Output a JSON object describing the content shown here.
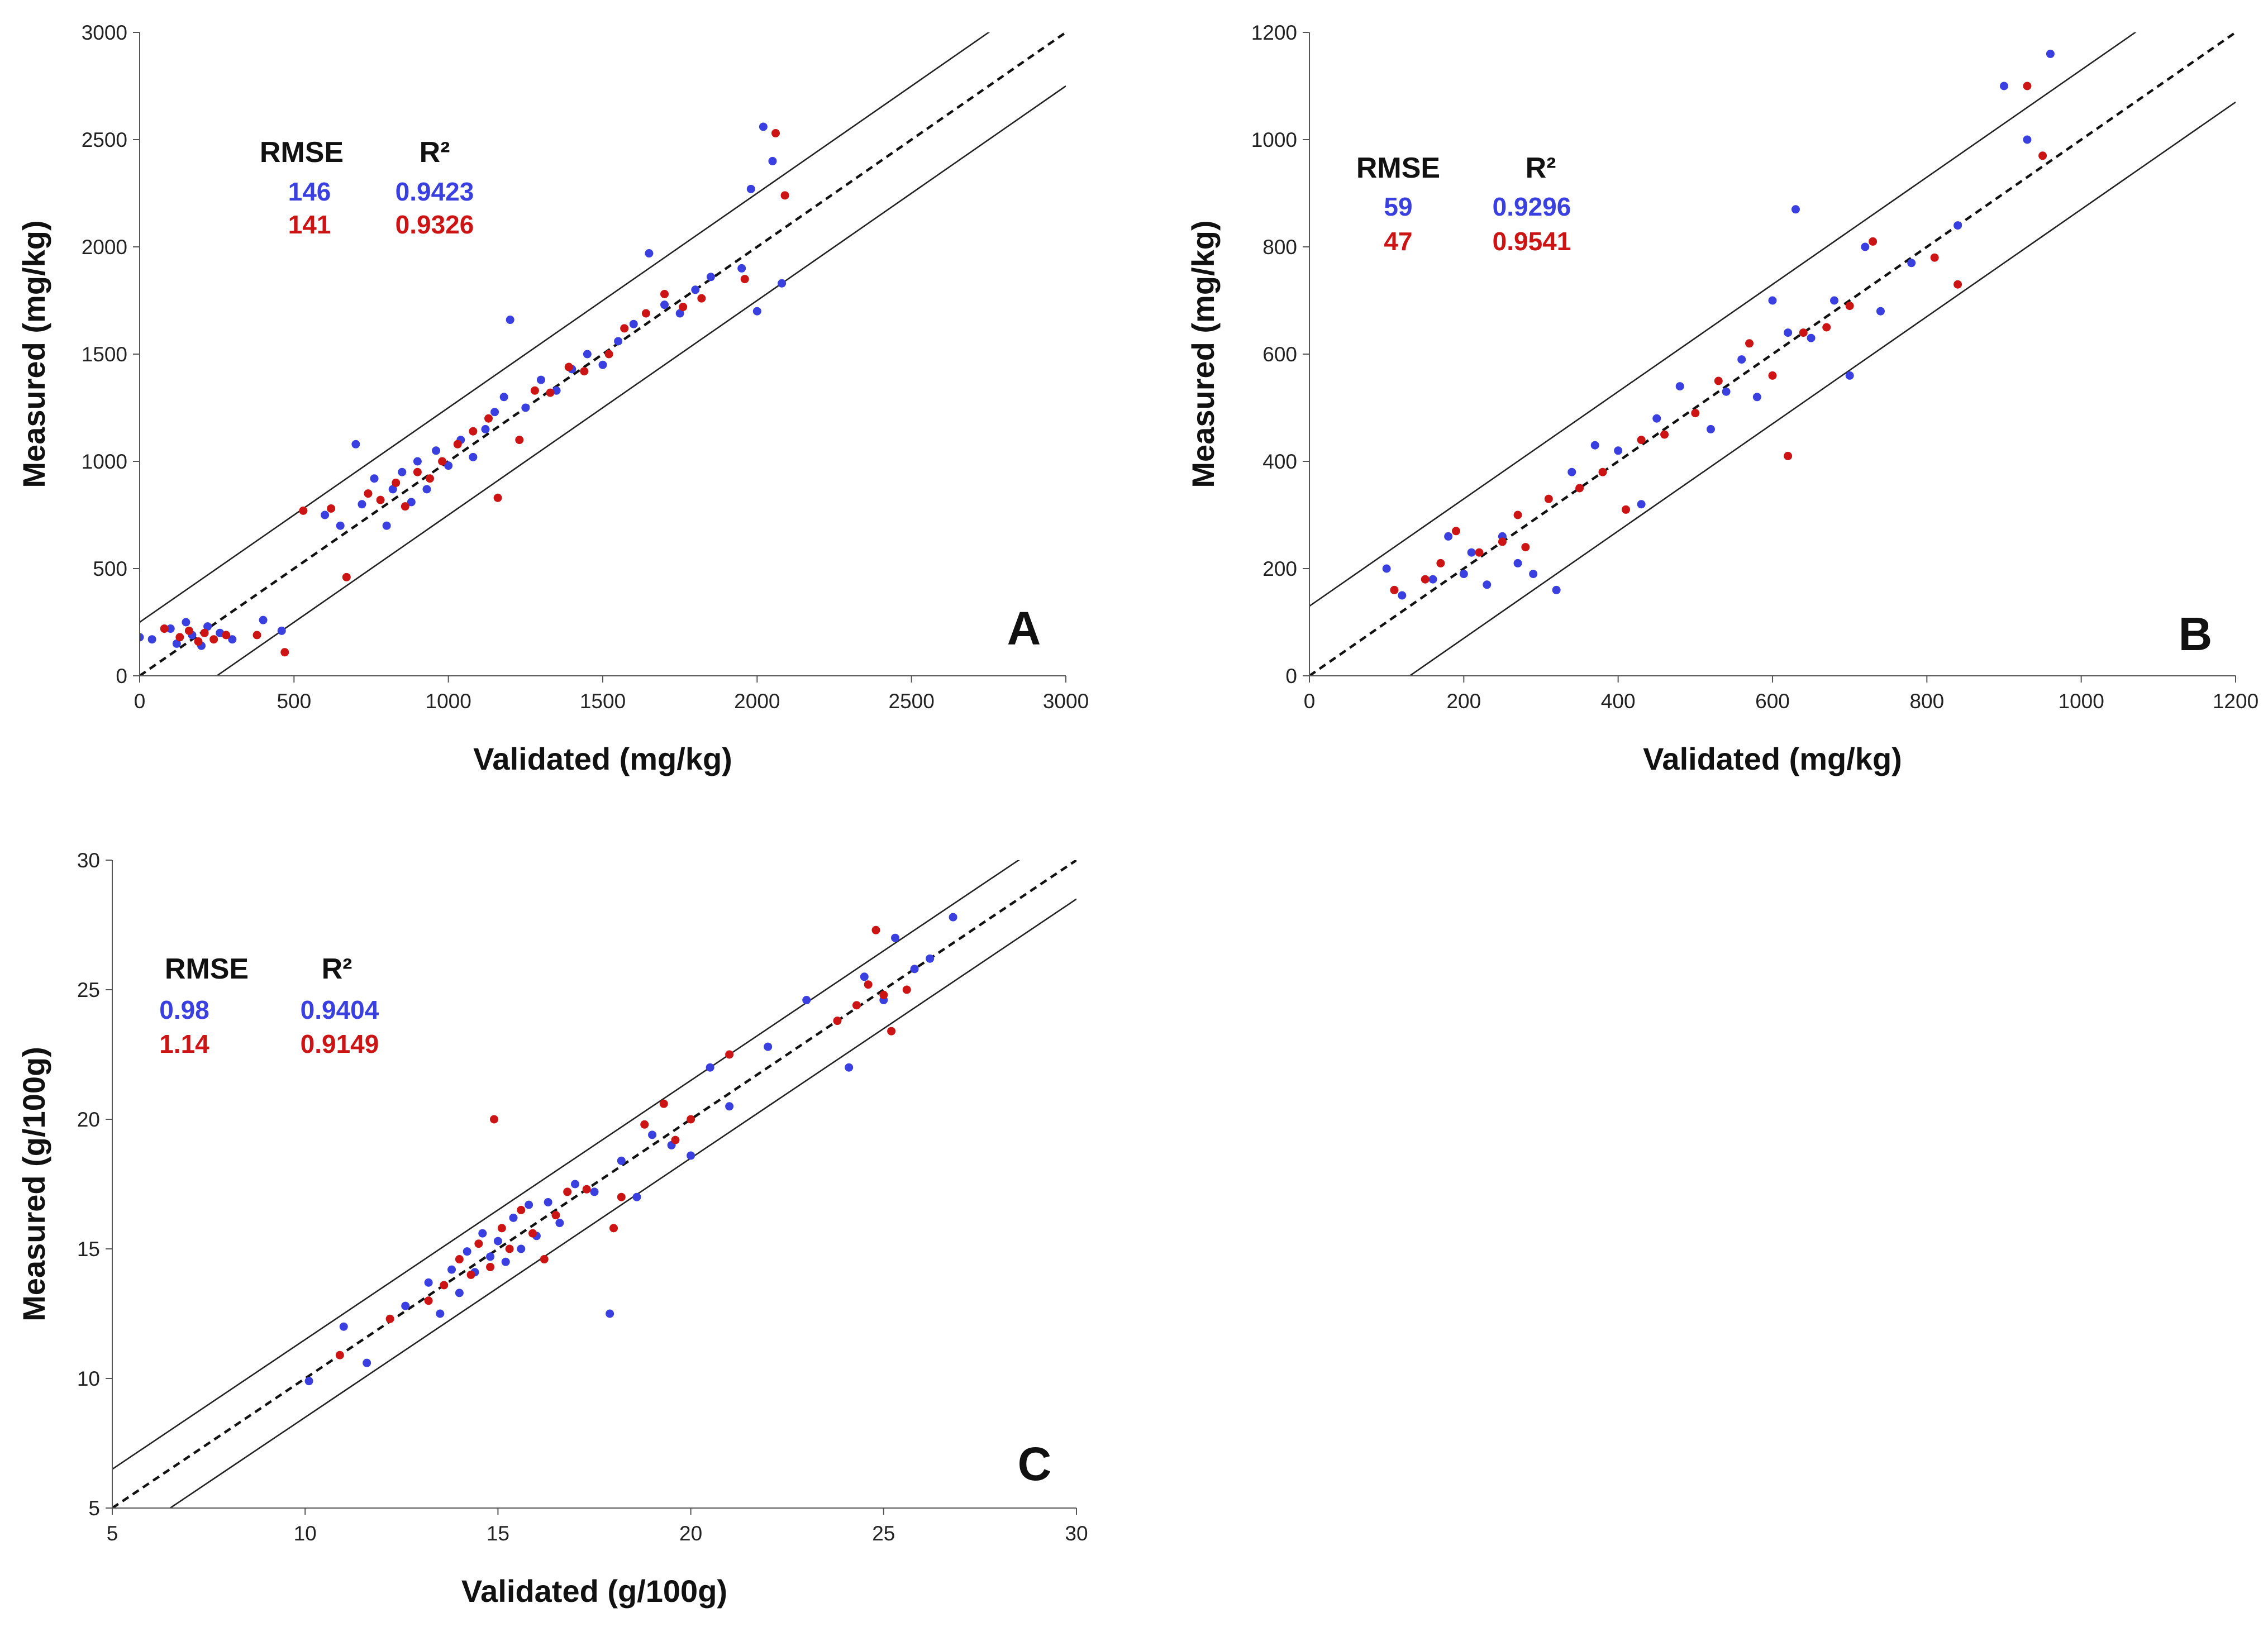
{
  "colors": {
    "blue": "#3a3fe0",
    "red": "#cc1414",
    "axis": "#555555",
    "line": "#222222"
  },
  "chart_data": [
    {
      "panel": "A",
      "type": "scatter",
      "xlabel": "Validated (mg/kg)",
      "ylabel": "Measured (mg/kg)",
      "xlim": [
        0,
        3000
      ],
      "ylim": [
        0,
        3000
      ],
      "xticks": [
        0,
        500,
        1000,
        1500,
        2000,
        2500,
        3000
      ],
      "yticks": [
        0,
        500,
        1000,
        1500,
        2000,
        2500,
        3000
      ],
      "xtick_labels": [
        "0",
        "500",
        "1000",
        "1500",
        "2000",
        "2500",
        "3000"
      ],
      "ytick_labels": [
        "0",
        "500",
        "1000",
        "1500",
        "2000",
        "2500",
        "3000"
      ],
      "identity_line": true,
      "band_offset": 250,
      "stats_header": {
        "rmse": "RMSE",
        "r2": "R²"
      },
      "series": [
        {
          "name": "blue",
          "color": "blue",
          "rmse": "146",
          "r2": "0.9423",
          "points": [
            [
              0,
              180
            ],
            [
              40,
              170
            ],
            [
              100,
              220
            ],
            [
              120,
              150
            ],
            [
              150,
              250
            ],
            [
              170,
              190
            ],
            [
              200,
              140
            ],
            [
              220,
              230
            ],
            [
              260,
              200
            ],
            [
              300,
              170
            ],
            [
              400,
              260
            ],
            [
              460,
              210
            ],
            [
              600,
              750
            ],
            [
              650,
              700
            ],
            [
              700,
              1080
            ],
            [
              720,
              800
            ],
            [
              760,
              920
            ],
            [
              800,
              700
            ],
            [
              820,
              870
            ],
            [
              850,
              950
            ],
            [
              880,
              810
            ],
            [
              900,
              1000
            ],
            [
              930,
              870
            ],
            [
              960,
              1050
            ],
            [
              1000,
              980
            ],
            [
              1040,
              1100
            ],
            [
              1080,
              1020
            ],
            [
              1120,
              1150
            ],
            [
              1150,
              1230
            ],
            [
              1180,
              1300
            ],
            [
              1200,
              1660
            ],
            [
              1250,
              1250
            ],
            [
              1300,
              1380
            ],
            [
              1350,
              1330
            ],
            [
              1400,
              1430
            ],
            [
              1450,
              1500
            ],
            [
              1500,
              1450
            ],
            [
              1550,
              1560
            ],
            [
              1600,
              1640
            ],
            [
              1650,
              1970
            ],
            [
              1700,
              1730
            ],
            [
              1750,
              1690
            ],
            [
              1800,
              1800
            ],
            [
              1850,
              1860
            ],
            [
              1950,
              1900
            ],
            [
              1980,
              2270
            ],
            [
              2000,
              1700
            ],
            [
              2020,
              2560
            ],
            [
              2050,
              2400
            ],
            [
              2080,
              1830
            ]
          ]
        },
        {
          "name": "red",
          "color": "red",
          "rmse": "141",
          "r2": "0.9326",
          "points": [
            [
              80,
              220
            ],
            [
              130,
              180
            ],
            [
              160,
              210
            ],
            [
              190,
              160
            ],
            [
              210,
              200
            ],
            [
              240,
              170
            ],
            [
              280,
              190
            ],
            [
              380,
              190
            ],
            [
              470,
              110
            ],
            [
              530,
              770
            ],
            [
              620,
              780
            ],
            [
              670,
              460
            ],
            [
              740,
              850
            ],
            [
              780,
              820
            ],
            [
              830,
              900
            ],
            [
              860,
              790
            ],
            [
              900,
              950
            ],
            [
              940,
              920
            ],
            [
              980,
              1000
            ],
            [
              1030,
              1080
            ],
            [
              1080,
              1140
            ],
            [
              1130,
              1200
            ],
            [
              1160,
              830
            ],
            [
              1230,
              1100
            ],
            [
              1280,
              1330
            ],
            [
              1330,
              1320
            ],
            [
              1390,
              1440
            ],
            [
              1440,
              1420
            ],
            [
              1520,
              1500
            ],
            [
              1570,
              1620
            ],
            [
              1640,
              1690
            ],
            [
              1700,
              1780
            ],
            [
              1760,
              1720
            ],
            [
              1820,
              1760
            ],
            [
              1960,
              1850
            ],
            [
              2060,
              2530
            ],
            [
              2090,
              2240
            ]
          ]
        }
      ],
      "panel_label": "A"
    },
    {
      "panel": "B",
      "type": "scatter",
      "xlabel": "Validated (mg/kg)",
      "ylabel": "Measured (mg/kg)",
      "xlim": [
        0,
        1200
      ],
      "ylim": [
        0,
        1200
      ],
      "xticks": [
        0,
        200,
        400,
        600,
        800,
        1000,
        1200
      ],
      "yticks": [
        0,
        200,
        400,
        600,
        800,
        1000,
        1200
      ],
      "xtick_labels": [
        "0",
        "200",
        "400",
        "600",
        "800",
        "1000",
        "1200"
      ],
      "ytick_labels": [
        "0",
        "200",
        "400",
        "600",
        "800",
        "1000",
        "1200"
      ],
      "identity_line": true,
      "band_offset": 130,
      "stats_header": {
        "rmse": "RMSE",
        "r2": "R²"
      },
      "series": [
        {
          "name": "blue",
          "color": "blue",
          "rmse": "59",
          "r2": "0.9296",
          "points": [
            [
              100,
              200
            ],
            [
              120,
              150
            ],
            [
              160,
              180
            ],
            [
              180,
              260
            ],
            [
              200,
              190
            ],
            [
              210,
              230
            ],
            [
              230,
              170
            ],
            [
              250,
              260
            ],
            [
              270,
              210
            ],
            [
              290,
              190
            ],
            [
              320,
              160
            ],
            [
              340,
              380
            ],
            [
              370,
              430
            ],
            [
              400,
              420
            ],
            [
              430,
              320
            ],
            [
              450,
              480
            ],
            [
              480,
              540
            ],
            [
              520,
              460
            ],
            [
              540,
              530
            ],
            [
              560,
              590
            ],
            [
              580,
              520
            ],
            [
              600,
              700
            ],
            [
              620,
              640
            ],
            [
              630,
              870
            ],
            [
              650,
              630
            ],
            [
              680,
              700
            ],
            [
              700,
              560
            ],
            [
              720,
              800
            ],
            [
              740,
              680
            ],
            [
              780,
              770
            ],
            [
              840,
              840
            ],
            [
              900,
              1100
            ],
            [
              930,
              1000
            ],
            [
              960,
              1160
            ]
          ]
        },
        {
          "name": "red",
          "color": "red",
          "rmse": "47",
          "r2": "0.9541",
          "points": [
            [
              110,
              160
            ],
            [
              150,
              180
            ],
            [
              170,
              210
            ],
            [
              190,
              270
            ],
            [
              220,
              230
            ],
            [
              250,
              250
            ],
            [
              270,
              300
            ],
            [
              280,
              240
            ],
            [
              310,
              330
            ],
            [
              350,
              350
            ],
            [
              380,
              380
            ],
            [
              410,
              310
            ],
            [
              430,
              440
            ],
            [
              460,
              450
            ],
            [
              500,
              490
            ],
            [
              530,
              550
            ],
            [
              570,
              620
            ],
            [
              600,
              560
            ],
            [
              620,
              410
            ],
            [
              640,
              640
            ],
            [
              670,
              650
            ],
            [
              700,
              690
            ],
            [
              730,
              810
            ],
            [
              810,
              780
            ],
            [
              840,
              730
            ],
            [
              930,
              1100
            ],
            [
              950,
              970
            ]
          ]
        }
      ],
      "panel_label": "B"
    },
    {
      "panel": "C",
      "type": "scatter",
      "xlabel": "Validated (g/100g)",
      "ylabel": "Measured (g/100g)",
      "xlim": [
        5,
        30
      ],
      "ylim": [
        5,
        30
      ],
      "xticks": [
        5,
        10,
        15,
        20,
        25,
        30
      ],
      "yticks": [
        5,
        10,
        15,
        20,
        25,
        30
      ],
      "xtick_labels": [
        "5",
        "10",
        "15",
        "20",
        "25",
        "30"
      ],
      "ytick_labels": [
        "5",
        "10",
        "15",
        "20",
        "25",
        "30"
      ],
      "identity_line": true,
      "band_offset": 1.5,
      "stats_header": {
        "rmse": "RMSE",
        "r2": "R²"
      },
      "series": [
        {
          "name": "blue",
          "color": "blue",
          "rmse": "0.98",
          "r2": "0.9404",
          "points": [
            [
              10.1,
              9.9
            ],
            [
              11.0,
              12.0
            ],
            [
              11.6,
              10.6
            ],
            [
              12.6,
              12.8
            ],
            [
              13.2,
              13.7
            ],
            [
              13.5,
              12.5
            ],
            [
              13.8,
              14.2
            ],
            [
              14.0,
              13.3
            ],
            [
              14.2,
              14.9
            ],
            [
              14.4,
              14.1
            ],
            [
              14.6,
              15.6
            ],
            [
              14.8,
              14.7
            ],
            [
              15.0,
              15.3
            ],
            [
              15.2,
              14.5
            ],
            [
              15.4,
              16.2
            ],
            [
              15.6,
              15.0
            ],
            [
              15.8,
              16.7
            ],
            [
              16.0,
              15.5
            ],
            [
              16.3,
              16.8
            ],
            [
              16.6,
              16.0
            ],
            [
              17.0,
              17.5
            ],
            [
              17.5,
              17.2
            ],
            [
              17.9,
              12.5
            ],
            [
              18.2,
              18.4
            ],
            [
              18.6,
              17.0
            ],
            [
              19.0,
              19.4
            ],
            [
              19.5,
              19.0
            ],
            [
              20.0,
              18.6
            ],
            [
              20.5,
              22.0
            ],
            [
              21.0,
              20.5
            ],
            [
              22.0,
              22.8
            ],
            [
              23.0,
              24.6
            ],
            [
              24.1,
              22.0
            ],
            [
              24.5,
              25.5
            ],
            [
              25.0,
              24.6
            ],
            [
              25.3,
              27.0
            ],
            [
              25.8,
              25.8
            ],
            [
              26.2,
              26.2
            ],
            [
              26.8,
              27.8
            ]
          ]
        },
        {
          "name": "red",
          "color": "red",
          "rmse": "1.14",
          "r2": "0.9149",
          "points": [
            [
              10.9,
              10.9
            ],
            [
              12.2,
              12.3
            ],
            [
              13.2,
              13.0
            ],
            [
              13.6,
              13.6
            ],
            [
              14.0,
              14.6
            ],
            [
              14.3,
              14.0
            ],
            [
              14.5,
              15.2
            ],
            [
              14.8,
              14.3
            ],
            [
              14.9,
              20.0
            ],
            [
              15.1,
              15.8
            ],
            [
              15.3,
              15.0
            ],
            [
              15.6,
              16.5
            ],
            [
              15.9,
              15.6
            ],
            [
              16.2,
              14.6
            ],
            [
              16.5,
              16.3
            ],
            [
              16.8,
              17.2
            ],
            [
              17.3,
              17.3
            ],
            [
              18.0,
              15.8
            ],
            [
              18.2,
              17.0
            ],
            [
              18.8,
              19.8
            ],
            [
              19.3,
              20.6
            ],
            [
              19.6,
              19.2
            ],
            [
              20.0,
              20.0
            ],
            [
              21.0,
              22.5
            ],
            [
              23.8,
              23.8
            ],
            [
              24.3,
              24.4
            ],
            [
              24.6,
              25.2
            ],
            [
              24.8,
              27.3
            ],
            [
              25.0,
              24.8
            ],
            [
              25.2,
              23.4
            ],
            [
              25.6,
              25.0
            ]
          ]
        }
      ],
      "panel_label": "C"
    }
  ]
}
